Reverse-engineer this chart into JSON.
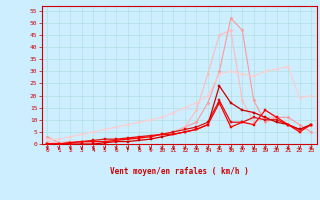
{
  "xlabel": "Vent moyen/en rafales ( km/h )",
  "bg_color": "#cceeff",
  "grid_color": "#aadddd",
  "xlim": [
    -0.5,
    23.5
  ],
  "ylim": [
    -1,
    57
  ],
  "ylim_data": [
    0,
    57
  ],
  "yticks": [
    0,
    5,
    10,
    15,
    20,
    25,
    30,
    35,
    40,
    45,
    50,
    55
  ],
  "xticks": [
    0,
    1,
    2,
    3,
    4,
    5,
    6,
    7,
    8,
    9,
    10,
    11,
    12,
    13,
    14,
    15,
    16,
    17,
    18,
    19,
    20,
    21,
    22,
    23
  ],
  "lines": [
    {
      "x": [
        0,
        1,
        2,
        3,
        4,
        5,
        6,
        7,
        8,
        9,
        10,
        11,
        12,
        13,
        14,
        15,
        16,
        17,
        18,
        19,
        20,
        21,
        22,
        23
      ],
      "y": [
        3,
        0.5,
        1,
        0.5,
        1,
        1,
        1.5,
        2,
        2.5,
        3,
        4,
        5,
        7,
        9,
        17,
        30,
        52,
        47,
        18,
        9,
        11,
        11,
        8,
        5
      ],
      "color": "#ff9999",
      "lw": 0.8,
      "marker": "D",
      "ms": 1.5,
      "zorder": 2
    },
    {
      "x": [
        0,
        1,
        2,
        3,
        4,
        5,
        6,
        7,
        8,
        9,
        10,
        11,
        12,
        13,
        14,
        15,
        16,
        17,
        18,
        19,
        20,
        21,
        22,
        23
      ],
      "y": [
        1,
        0.5,
        0.5,
        0.5,
        1,
        1,
        1.5,
        2,
        2,
        3,
        4,
        5,
        7,
        14,
        29,
        45,
        47,
        18,
        9,
        11,
        11,
        8,
        5,
        8
      ],
      "color": "#ffbbbb",
      "lw": 0.8,
      "marker": "D",
      "ms": 1.5,
      "zorder": 2
    },
    {
      "x": [
        0,
        1,
        2,
        3,
        4,
        5,
        6,
        7,
        8,
        9,
        10,
        11,
        12,
        13,
        14,
        15,
        16,
        17,
        18,
        19,
        20,
        21,
        22,
        23
      ],
      "y": [
        2,
        2,
        3,
        4,
        5,
        6,
        7,
        8,
        9,
        10,
        11,
        13,
        15,
        17,
        20,
        29,
        30,
        29,
        28,
        30,
        31,
        32,
        19,
        20
      ],
      "color": "#ffcccc",
      "lw": 0.8,
      "marker": "D",
      "ms": 1.5,
      "zorder": 2
    },
    {
      "x": [
        0,
        1,
        2,
        3,
        4,
        5,
        6,
        7,
        8,
        9,
        10,
        11,
        12,
        13,
        14,
        15,
        16,
        17,
        18,
        19,
        20,
        21,
        22,
        23
      ],
      "y": [
        0,
        0,
        0,
        0,
        0,
        0.5,
        1,
        1,
        1.5,
        2,
        3,
        4,
        5,
        6,
        8,
        24,
        17,
        14,
        13,
        11,
        9,
        8,
        6,
        8
      ],
      "color": "#cc0000",
      "lw": 0.9,
      "marker": "s",
      "ms": 1.8,
      "zorder": 4
    },
    {
      "x": [
        0,
        1,
        2,
        3,
        4,
        5,
        6,
        7,
        8,
        9,
        10,
        11,
        12,
        13,
        14,
        15,
        16,
        17,
        18,
        19,
        20,
        21,
        22,
        23
      ],
      "y": [
        0,
        0,
        0.5,
        1,
        1,
        1,
        1.5,
        2,
        2.5,
        3,
        4,
        4,
        5,
        6,
        8,
        17,
        7,
        9,
        8,
        14,
        11,
        8,
        5,
        8
      ],
      "color": "#ff0000",
      "lw": 0.9,
      "marker": "s",
      "ms": 1.8,
      "zorder": 5
    },
    {
      "x": [
        0,
        1,
        2,
        3,
        4,
        5,
        6,
        7,
        8,
        9,
        10,
        11,
        12,
        13,
        14,
        15,
        16,
        17,
        18,
        19,
        20,
        21,
        22,
        23
      ],
      "y": [
        0,
        0,
        0.5,
        1,
        1.5,
        2,
        2,
        2.5,
        3,
        3.5,
        4,
        5,
        6,
        7,
        9,
        18,
        9,
        9,
        11,
        10,
        10,
        8,
        6,
        8
      ],
      "color": "#dd1111",
      "lw": 0.9,
      "marker": "s",
      "ms": 1.8,
      "zorder": 3
    }
  ],
  "arrow_color": "#cc0000",
  "tick_color": "#cc0000",
  "spine_color": "#cc0000"
}
